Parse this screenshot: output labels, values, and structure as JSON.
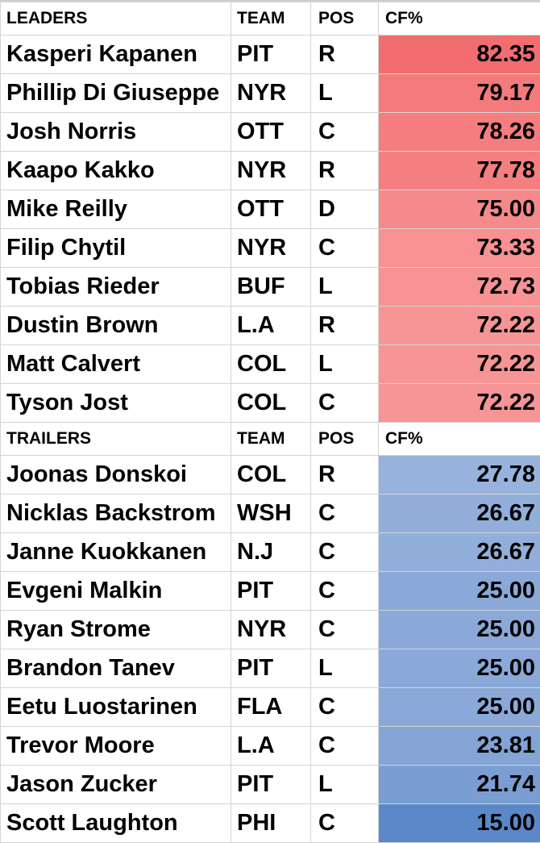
{
  "leaders": {
    "header": {
      "name": "LEADERS",
      "team": "TEAM",
      "pos": "POS",
      "stat": "CF%"
    },
    "rows": [
      {
        "name": "Kasperi Kapanen",
        "team": "PIT",
        "pos": "R",
        "cf": "82.35",
        "fill": "#f26d6f"
      },
      {
        "name": "Phillip Di Giuseppe",
        "team": "NYR",
        "pos": "L",
        "cf": "79.17",
        "fill": "#f47a7b"
      },
      {
        "name": "Josh Norris",
        "team": "OTT",
        "pos": "C",
        "cf": "78.26",
        "fill": "#f57d7e"
      },
      {
        "name": "Kaapo Kakko",
        "team": "NYR",
        "pos": "R",
        "cf": "77.78",
        "fill": "#f57f80"
      },
      {
        "name": "Mike Reilly",
        "team": "OTT",
        "pos": "D",
        "cf": "75.00",
        "fill": "#f68a8b"
      },
      {
        "name": "Filip Chytil",
        "team": "NYR",
        "pos": "C",
        "cf": "73.33",
        "fill": "#f79192"
      },
      {
        "name": "Tobias Rieder",
        "team": "BUF",
        "pos": "L",
        "cf": "72.73",
        "fill": "#f79394"
      },
      {
        "name": "Dustin Brown",
        "team": "L.A",
        "pos": "R",
        "cf": "72.22",
        "fill": "#f79596"
      },
      {
        "name": "Matt Calvert",
        "team": "COL",
        "pos": "L",
        "cf": "72.22",
        "fill": "#f79596"
      },
      {
        "name": "Tyson Jost",
        "team": "COL",
        "pos": "C",
        "cf": "72.22",
        "fill": "#f79596"
      }
    ]
  },
  "trailers": {
    "header": {
      "name": "TRAILERS",
      "team": "TEAM",
      "pos": "POS",
      "stat": "CF%"
    },
    "rows": [
      {
        "name": "Joonas Donskoi",
        "team": "COL",
        "pos": "R",
        "cf": "27.78",
        "fill": "#97b3dd"
      },
      {
        "name": "Nicklas Backstrom",
        "team": "WSH",
        "pos": "C",
        "cf": "26.67",
        "fill": "#92afdb"
      },
      {
        "name": "Janne Kuokkanen",
        "team": "N.J",
        "pos": "C",
        "cf": "26.67",
        "fill": "#92afdb"
      },
      {
        "name": "Evgeni Malkin",
        "team": "PIT",
        "pos": "C",
        "cf": "25.00",
        "fill": "#8aa9d8"
      },
      {
        "name": "Ryan Strome",
        "team": "NYR",
        "pos": "C",
        "cf": "25.00",
        "fill": "#8aa9d8"
      },
      {
        "name": "Brandon Tanev",
        "team": "PIT",
        "pos": "L",
        "cf": "25.00",
        "fill": "#8aa9d8"
      },
      {
        "name": "Eetu Luostarinen",
        "team": "FLA",
        "pos": "C",
        "cf": "25.00",
        "fill": "#8aa9d8"
      },
      {
        "name": "Trevor Moore",
        "team": "L.A",
        "pos": "C",
        "cf": "23.81",
        "fill": "#83a4d5"
      },
      {
        "name": "Jason Zucker",
        "team": "PIT",
        "pos": "L",
        "cf": "21.74",
        "fill": "#7b9ed2"
      },
      {
        "name": "Scott Laughton",
        "team": "PHI",
        "pos": "C",
        "cf": "15.00",
        "fill": "#5b88c8"
      }
    ]
  }
}
